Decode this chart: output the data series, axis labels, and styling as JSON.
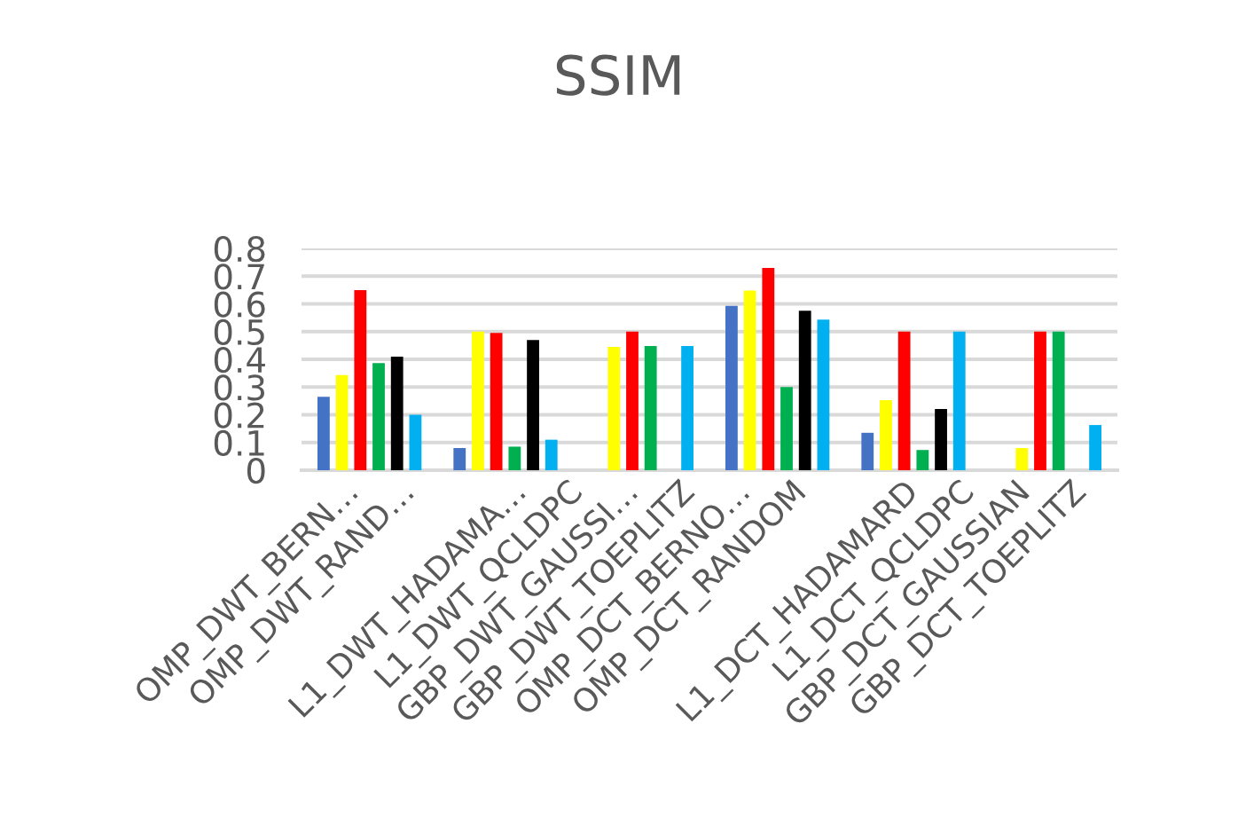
{
  "chart_data": {
    "type": "bar",
    "title": "SSIM",
    "categories": [
      null,
      null,
      null,
      null,
      null,
      null
    ],
    "series": [
      {
        "color": "#4472c4",
        "values": [
          0.265,
          0.08,
          null,
          0.593,
          0.135,
          null
        ]
      },
      {
        "color": "#ffff00",
        "values": [
          0.343,
          0.5,
          0.445,
          0.648,
          0.253,
          0.08
        ]
      },
      {
        "color": "#ff0000",
        "values": [
          0.65,
          0.495,
          0.5,
          0.73,
          0.5,
          0.5
        ]
      },
      {
        "color": "#00b050",
        "values": [
          0.386,
          0.085,
          0.448,
          0.3,
          0.073,
          0.5
        ]
      },
      {
        "color": "#000000",
        "values": [
          0.41,
          0.47,
          null,
          0.575,
          0.221,
          null
        ]
      },
      {
        "color": "#00b0f0",
        "values": [
          0.2,
          0.11,
          0.448,
          0.543,
          0.5,
          0.163
        ]
      }
    ],
    "ylim": [
      0,
      0.8
    ],
    "yticks": [
      0,
      0.1,
      0.2,
      0.3,
      0.4,
      0.5,
      0.6,
      0.7,
      0.8
    ],
    "grid": "y",
    "legend": false,
    "annotations": [
      "OMP_DWT_BERN…",
      "OMP_DWT_RAND…",
      "L1_DWT_HADAMA…",
      "L1_DWT_QCLDPC",
      "GBP_DWT_GAUSSI…",
      "GBP_DWT_TOEPLITZ",
      "OMP_DCT_BERNO…",
      "OMP_DCT_RANDOM",
      "L1_DCT_HADAMARD",
      "L1_DCT_QCLDPC",
      "GBP_DCT_GAUSSIAN",
      "GBP_DCT_TOEPLITZ"
    ]
  }
}
